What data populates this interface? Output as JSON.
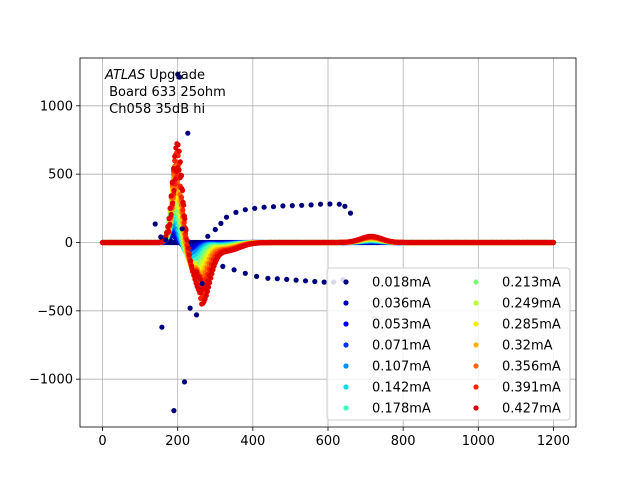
{
  "chart_data": {
    "type": "scatter",
    "annotation": {
      "italic": "ATLAS",
      "line1_rest": " Upgrade",
      "line2": " Board 633 25ohm",
      "line3": " Ch058 35dB hi"
    },
    "xlim": [
      -60,
      1260
    ],
    "ylim": [
      -1350,
      1350
    ],
    "xticks": [
      0,
      200,
      400,
      600,
      800,
      1000,
      1200
    ],
    "yticks": [
      -1000,
      -500,
      0,
      500,
      1000
    ],
    "xtick_labels": [
      "0",
      "200",
      "400",
      "600",
      "800",
      "1000",
      "1200"
    ],
    "ytick_labels": [
      "−1000",
      "−500",
      "0",
      "500",
      "1000"
    ],
    "grid": true,
    "legend_position": "lower-right",
    "legend_columns": 2,
    "series": [
      {
        "name": "0.018mA",
        "color": "#00007f",
        "amp": 0
      },
      {
        "name": "0.036mA",
        "color": "#0000b2",
        "amp": 0.07
      },
      {
        "name": "0.053mA",
        "color": "#0000f1",
        "amp": 0.13
      },
      {
        "name": "0.071mA",
        "color": "#0034ff",
        "amp": 0.18
      },
      {
        "name": "0.107mA",
        "color": "#0090ff",
        "amp": 0.26
      },
      {
        "name": "0.142mA",
        "color": "#16d7e4",
        "amp": 0.34
      },
      {
        "name": "0.178mA",
        "color": "#3cffba",
        "amp": 0.42
      },
      {
        "name": "0.213mA",
        "color": "#7dff7a",
        "amp": 0.5
      },
      {
        "name": "0.249mA",
        "color": "#baff3c",
        "amp": 0.58
      },
      {
        "name": "0.285mA",
        "color": "#f1f408",
        "amp": 0.66
      },
      {
        "name": "0.32mA",
        "color": "#ffb000",
        "amp": 0.74
      },
      {
        "name": "0.356mA",
        "color": "#ff6800",
        "amp": 0.82
      },
      {
        "name": "0.391mA",
        "color": "#ff2100",
        "amp": 0.91
      },
      {
        "name": "0.427mA",
        "color": "#df0000",
        "amp": 1.0
      }
    ],
    "outlier_points": [
      [
        200,
        1230
      ],
      [
        205,
        1210
      ],
      [
        227,
        800
      ],
      [
        212,
        100
      ],
      [
        140,
        135
      ],
      [
        155,
        40
      ],
      [
        168,
        20
      ],
      [
        182,
        10
      ],
      [
        158,
        -620
      ],
      [
        190,
        -1230
      ],
      [
        218,
        -1020
      ],
      [
        233,
        -480
      ],
      [
        250,
        -530
      ],
      [
        265,
        -300
      ],
      [
        280,
        45
      ],
      [
        300,
        95
      ],
      [
        315,
        140
      ],
      [
        330,
        185
      ],
      [
        355,
        220
      ],
      [
        380,
        240
      ],
      [
        405,
        250
      ],
      [
        430,
        258
      ],
      [
        455,
        262
      ],
      [
        480,
        268
      ],
      [
        505,
        270
      ],
      [
        530,
        272
      ],
      [
        555,
        275
      ],
      [
        580,
        280
      ],
      [
        605,
        282
      ],
      [
        630,
        280
      ],
      [
        645,
        265
      ],
      [
        660,
        215
      ],
      [
        320,
        -175
      ],
      [
        350,
        -200
      ],
      [
        380,
        -225
      ],
      [
        410,
        -248
      ],
      [
        440,
        -262
      ],
      [
        465,
        -265
      ],
      [
        490,
        -270
      ],
      [
        515,
        -275
      ],
      [
        540,
        -280
      ],
      [
        565,
        -285
      ],
      [
        590,
        -290
      ],
      [
        615,
        -290
      ],
      [
        640,
        -272
      ]
    ]
  }
}
